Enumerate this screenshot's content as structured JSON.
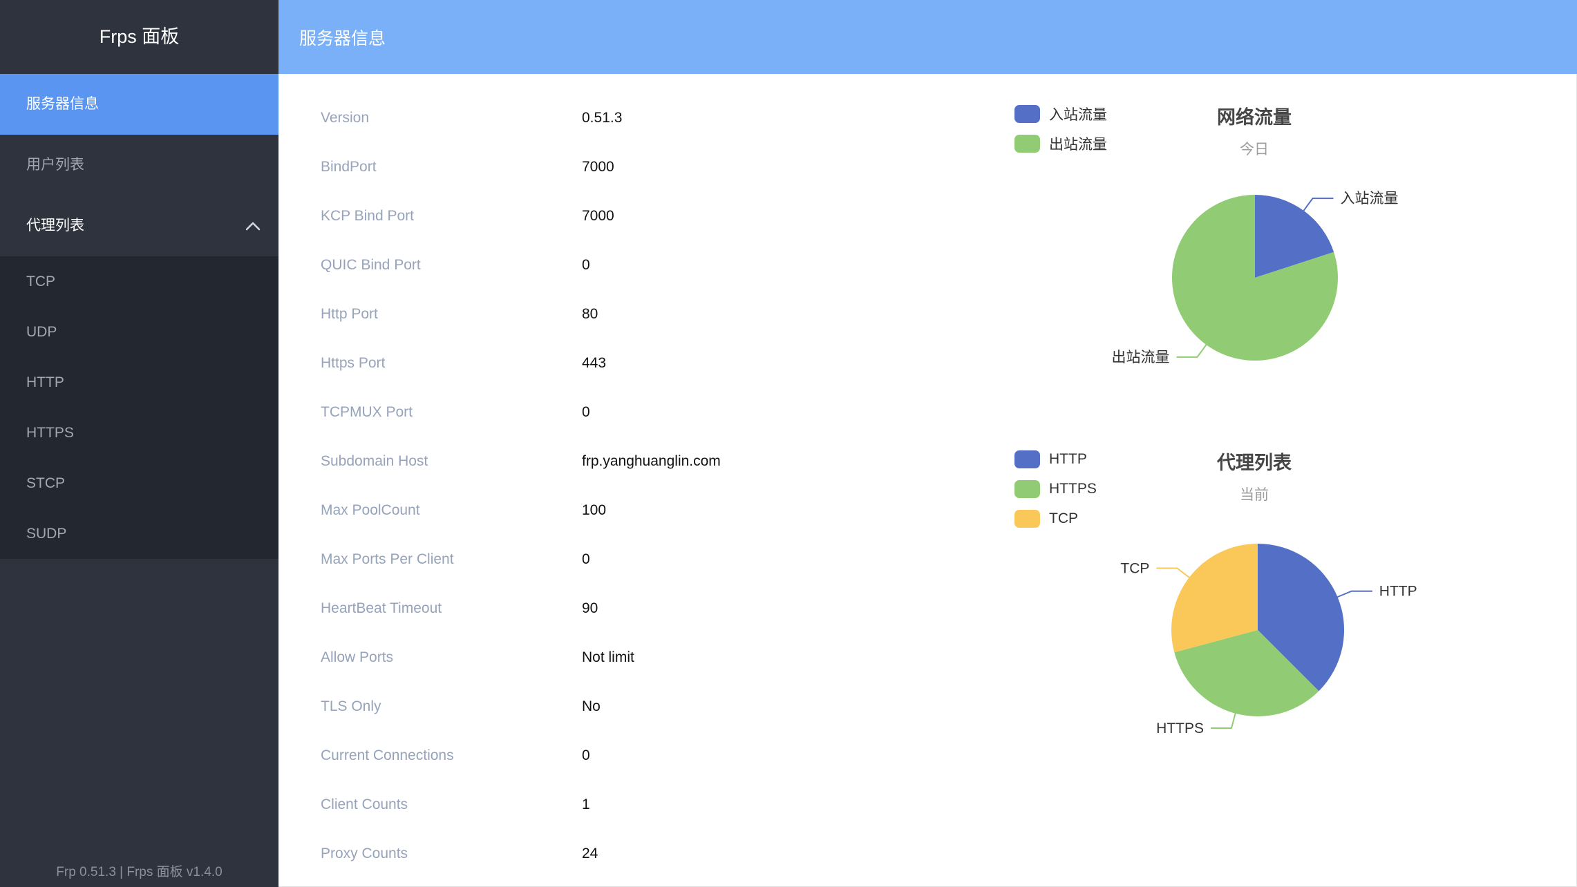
{
  "sidebar": {
    "title": "Frps 面板",
    "items": [
      {
        "label": "服务器信息",
        "state": "active"
      },
      {
        "label": "用户列表",
        "state": "normal"
      },
      {
        "label": "代理列表",
        "state": "expanded"
      }
    ],
    "subitems": [
      "TCP",
      "UDP",
      "HTTP",
      "HTTPS",
      "STCP",
      "SUDP"
    ],
    "footer": "Frp 0.51.3 | Frps 面板 v1.4.0"
  },
  "header": {
    "title": "服务器信息"
  },
  "server_info": [
    {
      "label": "Version",
      "value": "0.51.3"
    },
    {
      "label": "BindPort",
      "value": "7000"
    },
    {
      "label": "KCP Bind Port",
      "value": "7000"
    },
    {
      "label": "QUIC Bind Port",
      "value": "0"
    },
    {
      "label": "Http Port",
      "value": "80"
    },
    {
      "label": "Https Port",
      "value": "443"
    },
    {
      "label": "TCPMUX Port",
      "value": "0"
    },
    {
      "label": "Subdomain Host",
      "value": "frp.yanghuanglin.com"
    },
    {
      "label": "Max PoolCount",
      "value": "100"
    },
    {
      "label": "Max Ports Per Client",
      "value": "0"
    },
    {
      "label": "HeartBeat Timeout",
      "value": "90"
    },
    {
      "label": "Allow Ports",
      "value": "Not limit"
    },
    {
      "label": "TLS Only",
      "value": "No"
    },
    {
      "label": "Current Connections",
      "value": "0"
    },
    {
      "label": "Client Counts",
      "value": "1"
    },
    {
      "label": "Proxy Counts",
      "value": "24"
    }
  ],
  "chart_data": [
    {
      "type": "pie",
      "title": "网络流量",
      "subtitle": "今日",
      "legend_position": "top-left",
      "value_unit": "percent_of_today_traffic_estimated",
      "series": [
        {
          "name": "入站流量",
          "value": 20,
          "color": "#5470C6"
        },
        {
          "name": "出站流量",
          "value": 80,
          "color": "#91CC75"
        }
      ]
    },
    {
      "type": "pie",
      "title": "代理列表",
      "subtitle": "当前",
      "legend_position": "top-left",
      "value_unit": "proxy_count",
      "series": [
        {
          "name": "HTTP",
          "value": 9,
          "color": "#5470C6"
        },
        {
          "name": "HTTPS",
          "value": 8,
          "color": "#91CC75"
        },
        {
          "name": "TCP",
          "value": 7,
          "color": "#FAC858"
        }
      ]
    }
  ]
}
